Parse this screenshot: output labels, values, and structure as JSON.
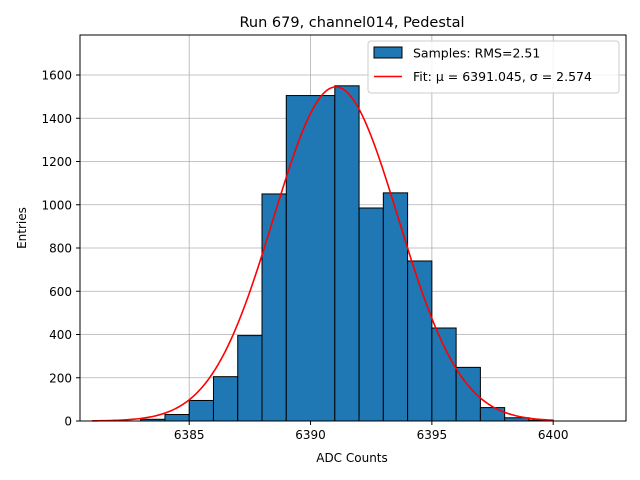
{
  "chart_data": {
    "type": "bar",
    "title": "Run 679, channel014, Pedestal",
    "xlabel": "ADC Counts",
    "ylabel": "Entries",
    "xlim": [
      6380.5,
      6403.0
    ],
    "ylim": [
      0,
      1785
    ],
    "xticks": [
      6385,
      6390,
      6395,
      6400
    ],
    "yticks": [
      0,
      200,
      400,
      600,
      800,
      1000,
      1200,
      1400,
      1600
    ],
    "grid": true,
    "legend_position": "top-right",
    "histogram": {
      "name": "Samples: RMS=2.51",
      "color": "#1f77b4",
      "bins": [
        {
          "left": 6383,
          "right": 6384,
          "value": 8
        },
        {
          "left": 6384,
          "right": 6385,
          "value": 30
        },
        {
          "left": 6385,
          "right": 6386,
          "value": 95
        },
        {
          "left": 6386,
          "right": 6387,
          "value": 205
        },
        {
          "left": 6387,
          "right": 6388,
          "value": 395
        },
        {
          "left": 6388,
          "right": 6389,
          "value": 1050
        },
        {
          "left": 6389,
          "right": 6391,
          "value": 1505
        },
        {
          "left": 6391,
          "right": 6392,
          "value": 1550
        },
        {
          "left": 6392,
          "right": 6393,
          "value": 985
        },
        {
          "left": 6393,
          "right": 6394,
          "value": 1055
        },
        {
          "left": 6394,
          "right": 6395,
          "value": 740
        },
        {
          "left": 6395,
          "right": 6396,
          "value": 430
        },
        {
          "left": 6396,
          "right": 6397,
          "value": 248
        },
        {
          "left": 6397,
          "right": 6398,
          "value": 62
        },
        {
          "left": 6398,
          "right": 6399,
          "value": 15
        },
        {
          "left": 6399,
          "right": 6400,
          "value": 4
        }
      ]
    },
    "fit": {
      "name": "Fit: μ = 6391.045, σ = 2.574",
      "color": "#ff0000",
      "mu": 6391.045,
      "sigma": 2.574,
      "amplitude": 1545,
      "x_range": [
        6381.0,
        6400.0
      ]
    }
  }
}
